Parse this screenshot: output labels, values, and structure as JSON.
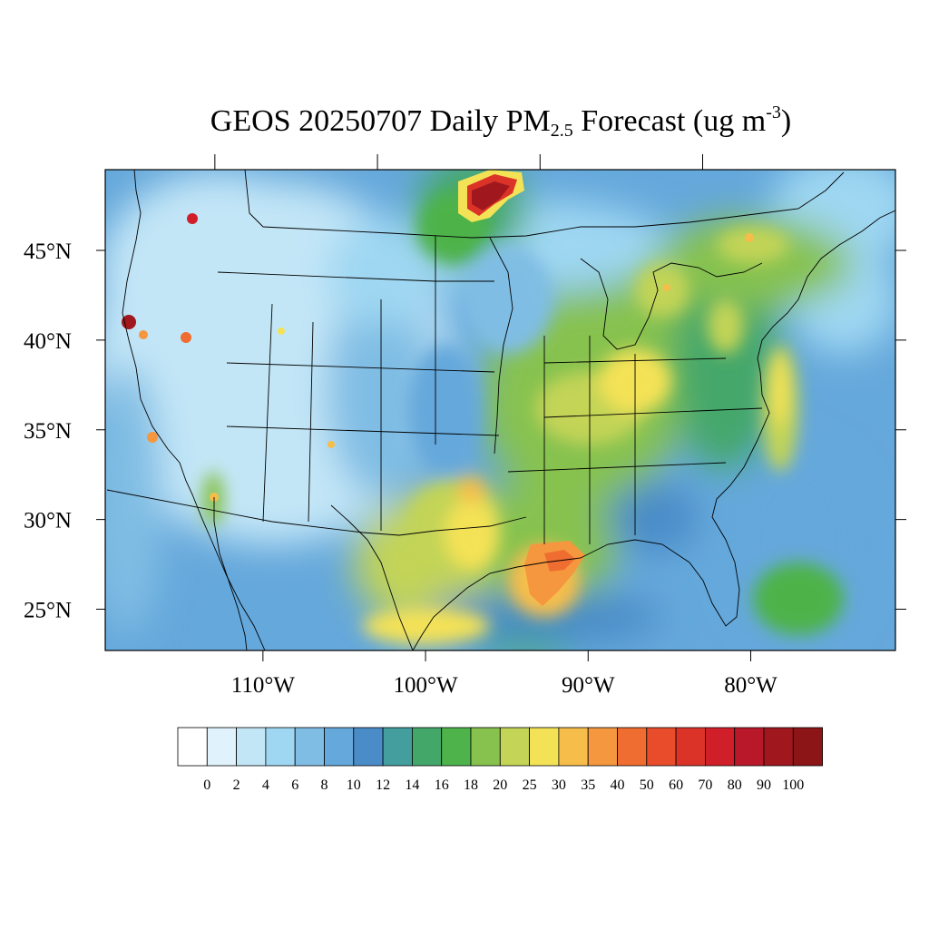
{
  "title": {
    "prefix": "GEOS 20250707 Daily PM",
    "subscript": "2.5",
    "mid": " Forecast (ug m",
    "superscript": "-3",
    "suffix": ")"
  },
  "map": {
    "projection": "lat-lon",
    "extent": {
      "lon": [
        -119.7,
        -71.1
      ],
      "lat": [
        22.7,
        49.5
      ]
    },
    "lat_ticks": [
      {
        "value": 25,
        "label": "25°N"
      },
      {
        "value": 30,
        "label": "30°N"
      },
      {
        "value": 35,
        "label": "35°N"
      },
      {
        "value": 40,
        "label": "40°N"
      },
      {
        "value": 45,
        "label": "45°N"
      }
    ],
    "lon_ticks": [
      {
        "value": -110,
        "label": "110°W"
      },
      {
        "value": -100,
        "label": "100°W"
      },
      {
        "value": -90,
        "label": "90°W"
      },
      {
        "value": -80,
        "label": "80°W"
      }
    ],
    "variable": "PM2.5",
    "units": "ug m-3"
  },
  "colorbar": {
    "levels": [
      "0",
      "2",
      "4",
      "6",
      "8",
      "10",
      "12",
      "14",
      "16",
      "18",
      "20",
      "25",
      "30",
      "35",
      "40",
      "50",
      "60",
      "70",
      "80",
      "90",
      "100"
    ],
    "colors": [
      "#ffffff",
      "#e0f2fb",
      "#c3e6f7",
      "#9fd7f2",
      "#80bde4",
      "#65a8db",
      "#4a8cc8",
      "#449e9e",
      "#44a76a",
      "#4db34a",
      "#87c24f",
      "#c3d456",
      "#f4e256",
      "#f7bd4b",
      "#f4973e",
      "#ef6d30",
      "#e94c2b",
      "#dc3328",
      "#d11f2a",
      "#b9182a",
      "#a0181e",
      "#8c1517"
    ]
  }
}
